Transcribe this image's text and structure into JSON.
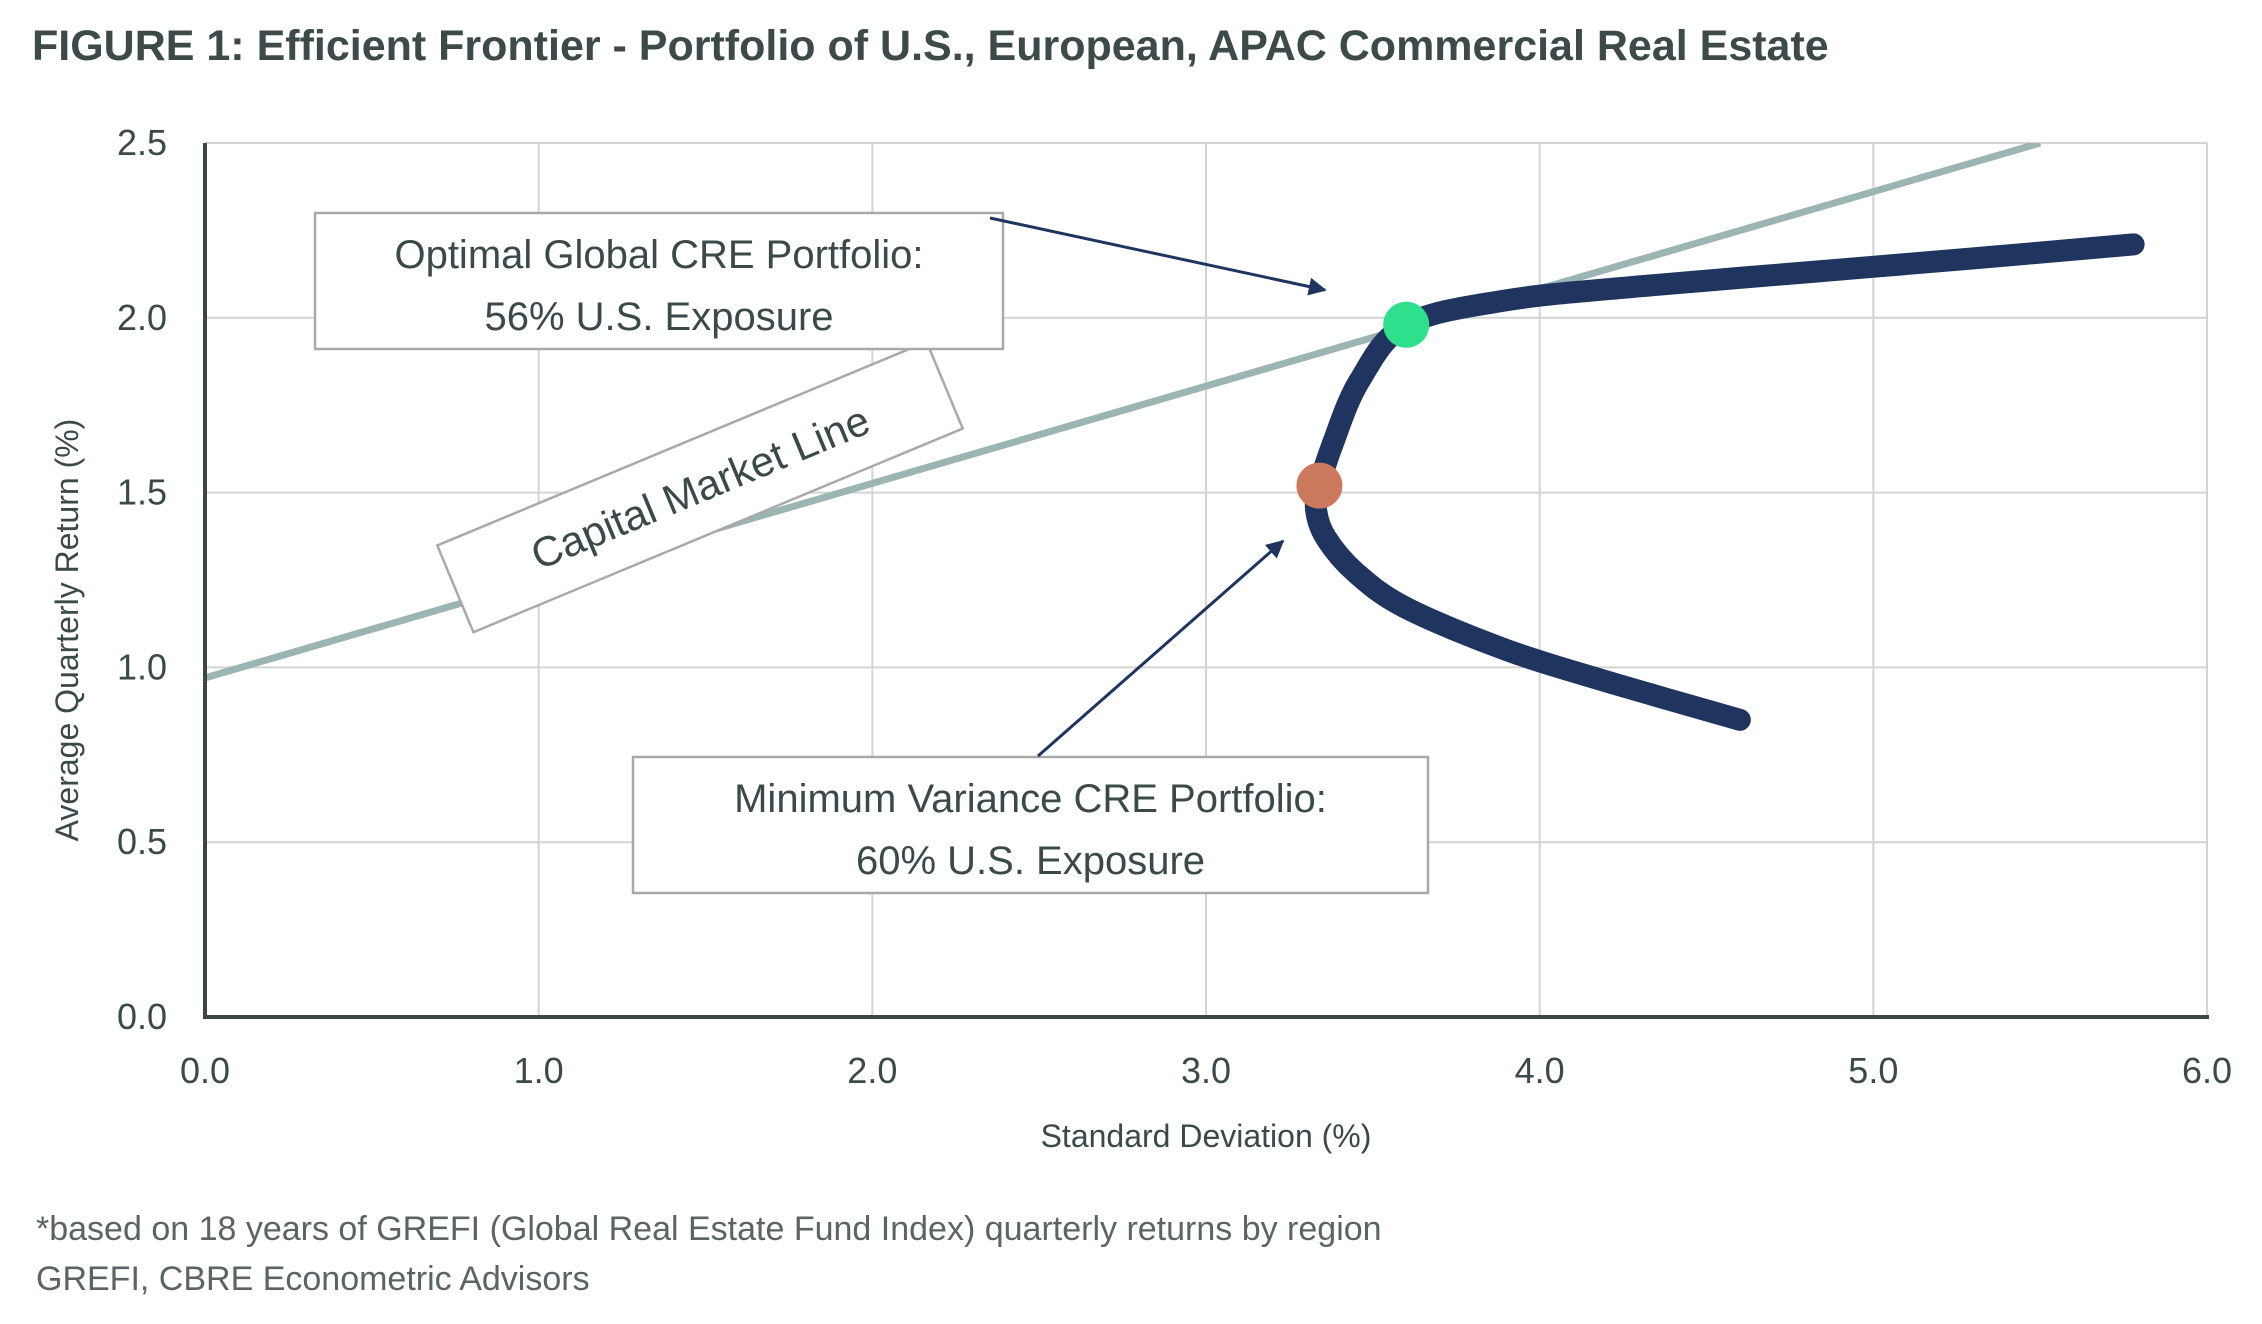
{
  "title": "FIGURE 1: Efficient Frontier - Portfolio of U.S., European, APAC Commercial Real Estate",
  "footnotes": [
    "*based on 18 years of GREFI (Global Real Estate Fund Index) quarterly returns by region",
    "GREFI, CBRE Econometric Advisors"
  ],
  "colors": {
    "frontier": "#1f3560",
    "cml": "#9bb4b4",
    "optimal_point": "#2ee08c",
    "min_variance_point": "#cc7a5e",
    "grid": "#d4d4d4",
    "axis": "#3c4646",
    "text": "#3a4a4a"
  },
  "chart_data": {
    "type": "line",
    "xlabel": "Standard Deviation (%)",
    "ylabel": "Average Quarterly Return (%)",
    "xlim": [
      0,
      6
    ],
    "ylim": [
      0,
      2.5
    ],
    "x_ticks": [
      "0.0",
      "1.0",
      "2.0",
      "3.0",
      "4.0",
      "5.0",
      "6.0"
    ],
    "y_ticks": [
      "0.0",
      "0.5",
      "1.0",
      "1.5",
      "2.0",
      "2.5"
    ],
    "grid": true,
    "series": [
      {
        "name": "Capital Market Line",
        "x": [
          0.0,
          5.5
        ],
        "y": [
          0.97,
          2.5
        ]
      },
      {
        "x": [
          4.6,
          4.2,
          3.9,
          3.6,
          3.45,
          3.36,
          3.33,
          3.34,
          3.38,
          3.46,
          3.6,
          3.9,
          4.3,
          4.8,
          5.3,
          5.78
        ],
        "y": [
          0.85,
          0.96,
          1.05,
          1.17,
          1.27,
          1.37,
          1.45,
          1.52,
          1.64,
          1.82,
          1.98,
          2.05,
          2.09,
          2.13,
          2.17,
          2.21
        ]
      }
    ],
    "points": [
      {
        "name": "Optimal Global CRE Portfolio",
        "x": 3.6,
        "y": 1.98
      },
      {
        "name": "Minimum Variance CRE Portfolio",
        "x": 3.34,
        "y": 1.52
      }
    ],
    "annotations": {
      "optimal": [
        "Optimal Global CRE Portfolio:",
        "56% U.S. Exposure"
      ],
      "min_variance": [
        "Minimum Variance CRE Portfolio:",
        "60% U.S. Exposure"
      ],
      "cml_label": "Capital Market Line"
    }
  }
}
